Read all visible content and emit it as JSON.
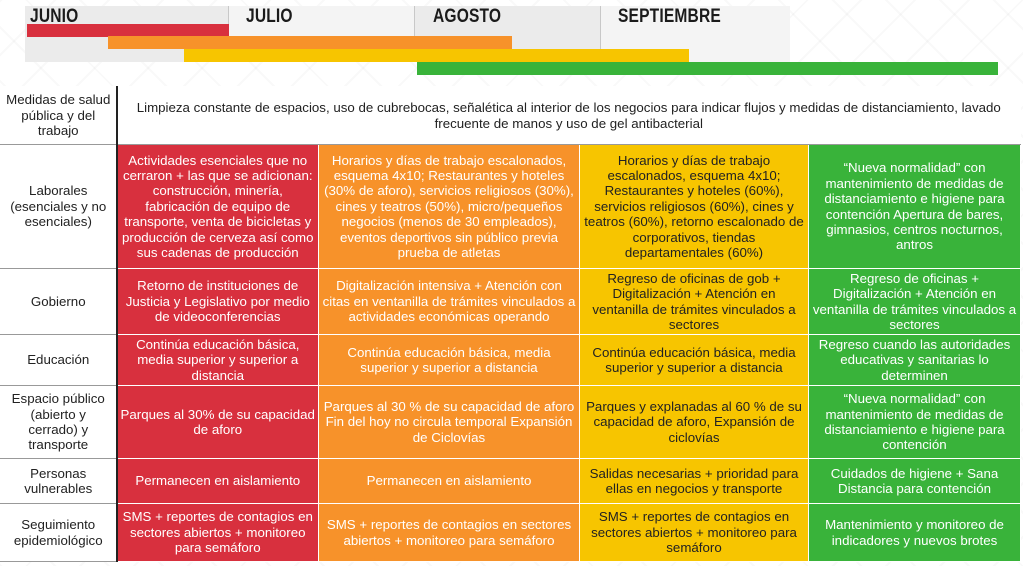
{
  "months": [
    "JUNIO",
    "JULIO",
    "AGOSTO",
    "SEPTIEMBRE"
  ],
  "colors": {
    "red": "#d8303e",
    "orange": "#f7922a",
    "yellow": "#f7c500",
    "green": "#39b33a"
  },
  "general": {
    "label": "Medidas de salud pública y del trabajo",
    "text": "Limpieza constante de espacios, uso de cubrebocas, señalética al interior de los negocios para indicar flujos y medidas de distanciamiento, lavado frecuente de manos y uso de gel antibacterial"
  },
  "rows": [
    {
      "label": "Laborales (esenciales y no esenciales)",
      "red": "Actividades esenciales que no cerraron + las que se adicionan: construcción, minería, fabricación de equipo de transporte, venta de bicicletas y producción de cerveza así como sus cadenas de producción",
      "orange": "Horarios y días de trabajo escalonados, esquema 4x10; Restaurantes y hoteles (30% de aforo), servicios religiosos (30%), cines y teatros (50%), micro/pequeños negocios (menos de 30 empleados), eventos deportivos sin público previa prueba de atletas",
      "yellow": "Horarios y días de trabajo escalonados, esquema 4x10; Restaurantes y hoteles (60%), servicios religiosos (60%), cines y teatros (60%), retorno escalonado de corporativos, tiendas departamentales (60%)",
      "green": "“Nueva normalidad” con mantenimiento de medidas de distanciamiento e higiene para contención Apertura de bares, gimnasios, centros nocturnos, antros"
    },
    {
      "label": "Gobierno",
      "red": "Retorno de instituciones de Justicia y Legislativo por medio de videoconferencias",
      "orange": "Digitalización intensiva + Atención con citas en ventanilla de trámites vinculados a actividades económicas operando",
      "yellow": "Regreso de oficinas de gob + Digitalización + Atención en ventanilla de trámites vinculados a sectores",
      "green": "Regreso de oficinas + Digitalización + Atención en ventanilla de trámites vinculados a sectores"
    },
    {
      "label": "Educación",
      "red": "Continúa educación básica, media superior y superior  a distancia",
      "orange": "Continúa educación básica, media superior y superior a distancia",
      "yellow": "Continúa educación básica, media superior y superior a distancia",
      "green": "Regreso cuando las autoridades educativas y sanitarias lo determinen"
    },
    {
      "label": "Espacio público (abierto y cerrado) y transporte",
      "red": "Parques al 30% de su capacidad de aforo",
      "orange": "Parques al 30 % de su capacidad de aforo Fin del hoy no circula temporal Expansión de Ciclovías",
      "yellow": "Parques y explanadas al 60 % de su capacidad de aforo, Expansión de ciclovías",
      "green": "“Nueva normalidad” con mantenimiento de medidas de distanciamiento e higiene para contención"
    },
    {
      "label": "Personas vulnerables",
      "red": "Permanecen en aislamiento",
      "orange": "Permanecen en aislamiento",
      "yellow": "Salidas necesarias + prioridad para ellas en negocios y transporte",
      "green": "Cuidados de higiene + Sana Distancia para contención"
    },
    {
      "label": "Seguimiento epidemiológico",
      "red": "SMS + reportes de contagios en sectores abiertos + monitoreo para semáforo",
      "orange": "SMS + reportes de contagios en sectores abiertos + monitoreo para semáforo",
      "yellow": "SMS + reportes de contagios en sectores abiertos + monitoreo para semáforo",
      "green": "Mantenimiento y monitoreo de indicadores y nuevos brotes"
    }
  ]
}
